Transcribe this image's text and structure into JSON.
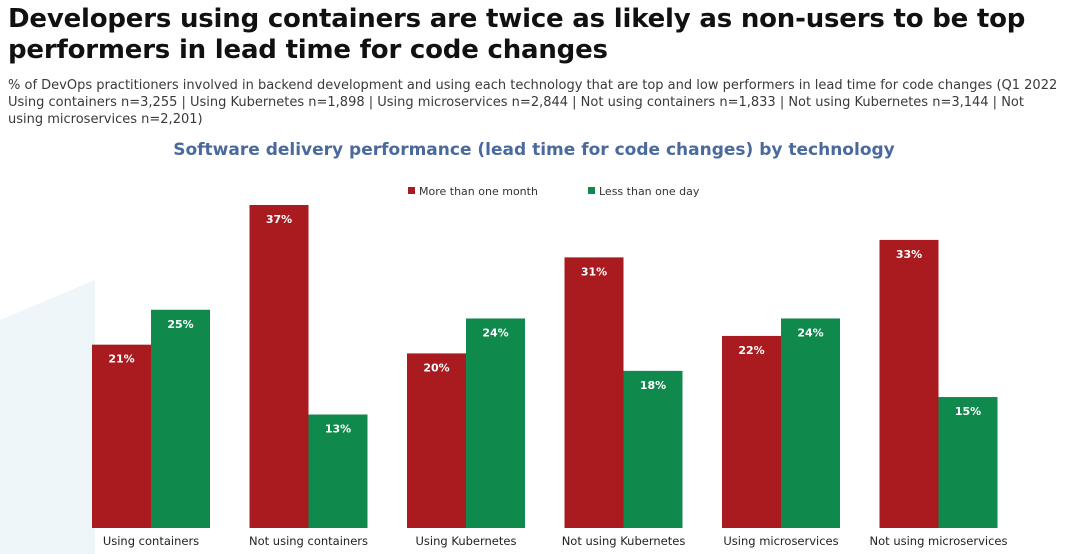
{
  "headline": "Developers using containers are twice as likely as non-users to be top performers in lead time for code changes",
  "subtitle": "% of DevOps practitioners involved in backend development and using each technology that are top and low performers in lead time for code changes (Q1 2022 Using containers n=3,255 | Using Kubernetes n=1,898 | Using microservices n=2,844 | Not using containers n=1,833 | Not using Kubernetes n=3,144 | Not using microservices n=2,201)",
  "chart_data": {
    "type": "bar",
    "title": "Software delivery performance (lead time for code changes) by technology",
    "xlabel": "",
    "ylabel": "",
    "ylim": [
      0,
      40
    ],
    "grid": false,
    "legend_position": "top-center",
    "categories": [
      "Using containers",
      "Not using containers",
      "Using Kubernetes",
      "Not using Kubernetes",
      "Using microservices",
      "Not using microservices"
    ],
    "series": [
      {
        "name": "More than one month",
        "color": "#a91b1f",
        "values": [
          21,
          37,
          20,
          31,
          22,
          33
        ],
        "labels": [
          "21%",
          "37%",
          "20%",
          "31%",
          "22%",
          "33%"
        ]
      },
      {
        "name": "Less than one day",
        "color": "#0f8a4c",
        "values": [
          25,
          13,
          24,
          18,
          24,
          15
        ],
        "labels": [
          "25%",
          "13%",
          "24%",
          "18%",
          "24%",
          "15%"
        ]
      }
    ]
  }
}
